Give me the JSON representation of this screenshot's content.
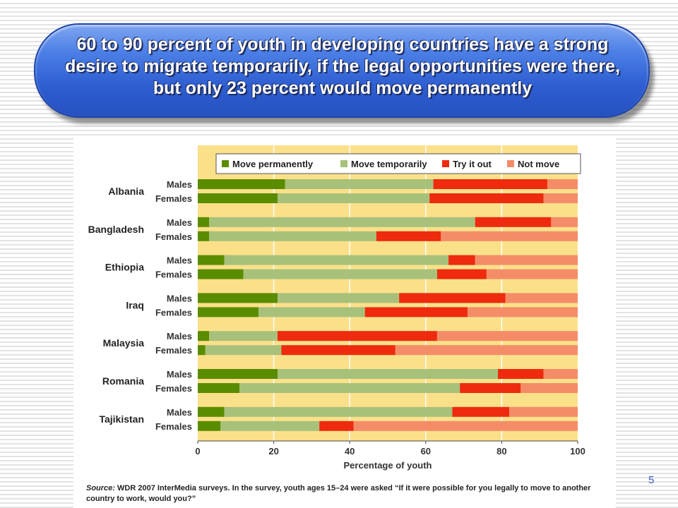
{
  "slide": {
    "title": "60 to 90 percent of youth in developing countries have a strong desire to migrate temporarily, if the legal opportunities were there, but only 23 percent would move permanently",
    "page_number": "5",
    "source_label": "Source:",
    "source_text": "WDR 2007 InterMedia surveys. In the survey, youth ages 15–24 were asked “If it were possible for you legally to move to another country to work, would you?”"
  },
  "colors": {
    "move_permanently": "#5a8c00",
    "move_temporarily": "#a8c17a",
    "try_it_out": "#ee2a0f",
    "not_move": "#f58c68",
    "plot_background": "#fbe08a"
  },
  "chart_data": {
    "type": "bar",
    "orientation": "horizontal",
    "stacked": true,
    "title": "",
    "xlabel": "Percentage of youth",
    "ylabel": "",
    "xlim": [
      0,
      100
    ],
    "xticks": [
      0,
      20,
      40,
      60,
      80,
      100
    ],
    "legend_position": "top",
    "legend": [
      "Move permanently",
      "Move temporarily",
      "Try it out",
      "Not move"
    ],
    "categories": [
      "Albania",
      "Bangladesh",
      "Ethiopia",
      "Iraq",
      "Malaysia",
      "Romania",
      "Tajikistan"
    ],
    "subcategories": [
      "Males",
      "Females"
    ],
    "series": [
      {
        "name": "Move permanently",
        "values": [
          [
            23,
            21
          ],
          [
            3,
            3
          ],
          [
            7,
            12
          ],
          [
            21,
            16
          ],
          [
            3,
            2
          ],
          [
            21,
            11
          ],
          [
            7,
            6
          ]
        ]
      },
      {
        "name": "Move temporarily",
        "values": [
          [
            39,
            40
          ],
          [
            70,
            44
          ],
          [
            59,
            51
          ],
          [
            32,
            28
          ],
          [
            18,
            20
          ],
          [
            58,
            58
          ],
          [
            60,
            26
          ]
        ]
      },
      {
        "name": "Try it out",
        "values": [
          [
            30,
            30
          ],
          [
            20,
            17
          ],
          [
            7,
            13
          ],
          [
            28,
            27
          ],
          [
            42,
            30
          ],
          [
            12,
            16
          ],
          [
            15,
            9
          ]
        ]
      },
      {
        "name": "Not move",
        "values": [
          [
            8,
            9
          ],
          [
            7,
            36
          ],
          [
            27,
            24
          ],
          [
            19,
            29
          ],
          [
            37,
            48
          ],
          [
            9,
            15
          ],
          [
            18,
            59
          ]
        ]
      }
    ]
  }
}
